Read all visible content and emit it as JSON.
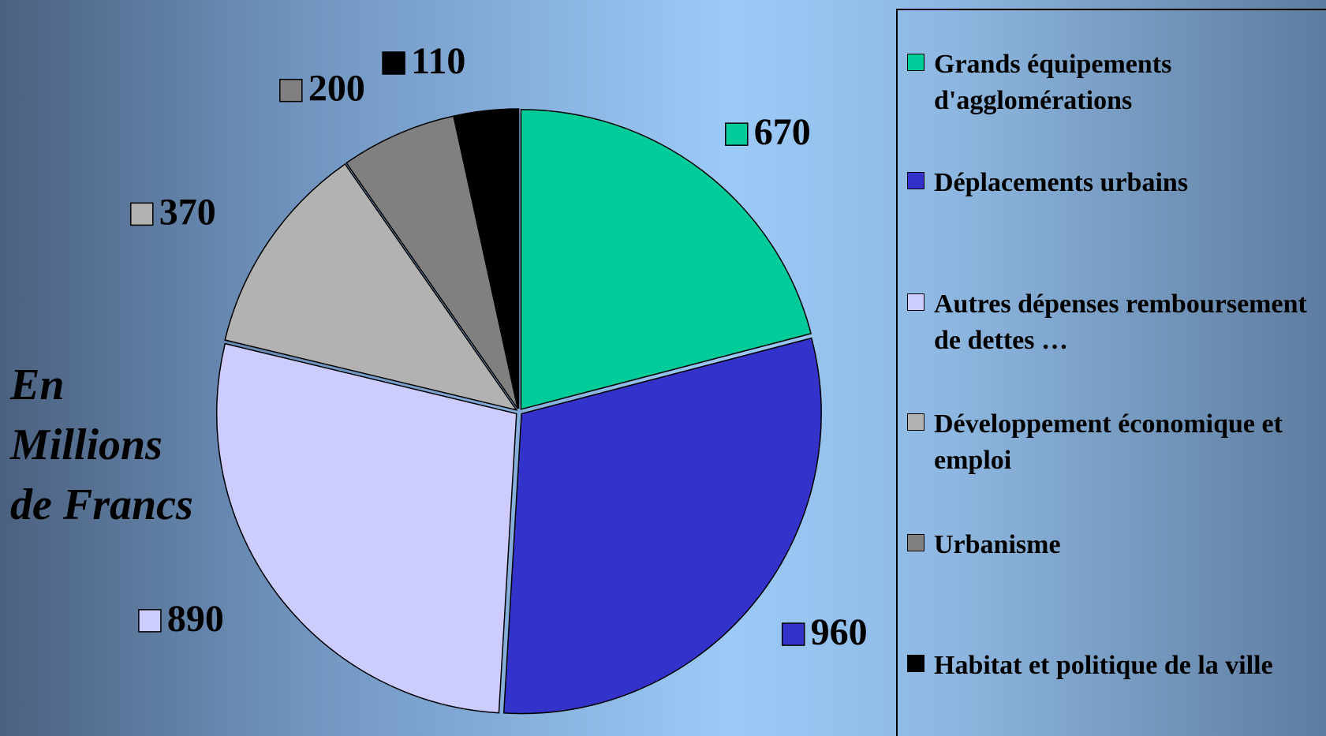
{
  "chart_data": {
    "type": "pie",
    "annotation": [
      "En",
      "Millions",
      "de Francs"
    ],
    "categories": [
      "Grands équipements d'agglomérations",
      "Déplacements urbains",
      "Autres dépenses remboursement de dettes …",
      "Développement économique et emploi",
      "Urbanisme",
      "Habitat et politique de la ville"
    ],
    "values": [
      670,
      960,
      890,
      370,
      200,
      110
    ],
    "colors": [
      "#00cc99",
      "#3333cc",
      "#ccccff",
      "#b2b2b2",
      "#808080",
      "#000000"
    ],
    "legend": "right"
  }
}
